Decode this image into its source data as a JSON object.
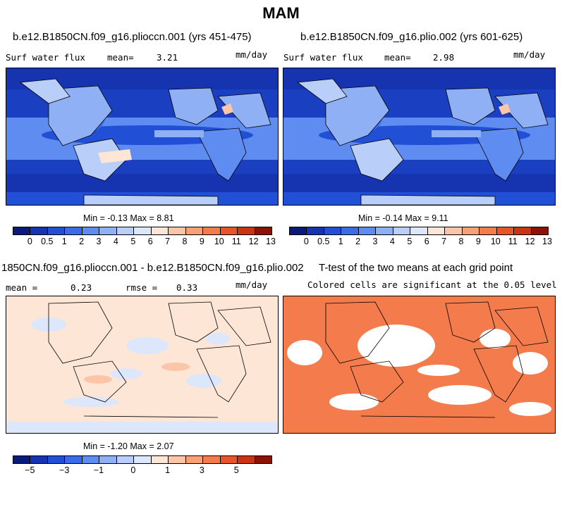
{
  "figure": {
    "title": "MAM",
    "panel1": {
      "title": "b.e12.B1850CN.f09_g16.plioccn.001 (yrs 451-475)",
      "variable": "Surf water flux",
      "mean_label": "mean=",
      "mean_value": "3.21",
      "units": "mm/day",
      "min_max": "Min =  -0.13  Max =   8.81"
    },
    "panel2": {
      "title": "b.e12.B1850CN.f09_g16.plio.002 (yrs 601-625)",
      "variable": "Surf water flux",
      "mean_label": "mean=",
      "mean_value": "2.98",
      "units": "mm/day",
      "min_max": "Min =  -0.14  Max =   9.11"
    },
    "panel3": {
      "title": "1850CN.f09_g16.plioccn.001 - b.e12.B1850CN.f09_g16.plio.002",
      "mean_label": "mean =",
      "mean_value": "0.23",
      "rmse_label": "rmse =",
      "rmse_value": "0.33",
      "units": "mm/day",
      "min_max": "Min =  -1.20  Max =   2.07"
    },
    "panel4": {
      "title": "T-test of the two means at each grid point",
      "note": "Colored cells are significant at the 0.05 level"
    },
    "colorbar_abs": {
      "colors": [
        "#0a1a7a",
        "#1633b0",
        "#2150d6",
        "#3b6ce8",
        "#5f8cf0",
        "#8fb0f5",
        "#b9cef8",
        "#dde7fb",
        "#fde6d6",
        "#fbc5a8",
        "#f8a076",
        "#f37b4c",
        "#e9552a",
        "#c93512",
        "#8c1206"
      ],
      "ticks": [
        "0",
        "0.5",
        "1",
        "2",
        "3",
        "4",
        "5",
        "6",
        "7",
        "8",
        "9",
        "10",
        "11",
        "12",
        "13"
      ]
    },
    "colorbar_diff": {
      "colors": [
        "#0a1a7a",
        "#1633b0",
        "#2150d6",
        "#3b6ce8",
        "#5f8cf0",
        "#8fb0f5",
        "#b9cef8",
        "#dde7fb",
        "#fde6d6",
        "#fbc5a8",
        "#f8a076",
        "#f37b4c",
        "#e9552a",
        "#c93512",
        "#8c1206"
      ],
      "ticks": [
        "−5",
        "−3",
        "−1",
        "0",
        "1",
        "3",
        "5"
      ]
    },
    "colors": {
      "ocean_deep": "#1a3fc0",
      "ocean_mid": "#3b6ce8",
      "land_light": "#a9c3f5",
      "diff_bg": "#fde6d6",
      "ttest": "#f37b4c"
    }
  }
}
